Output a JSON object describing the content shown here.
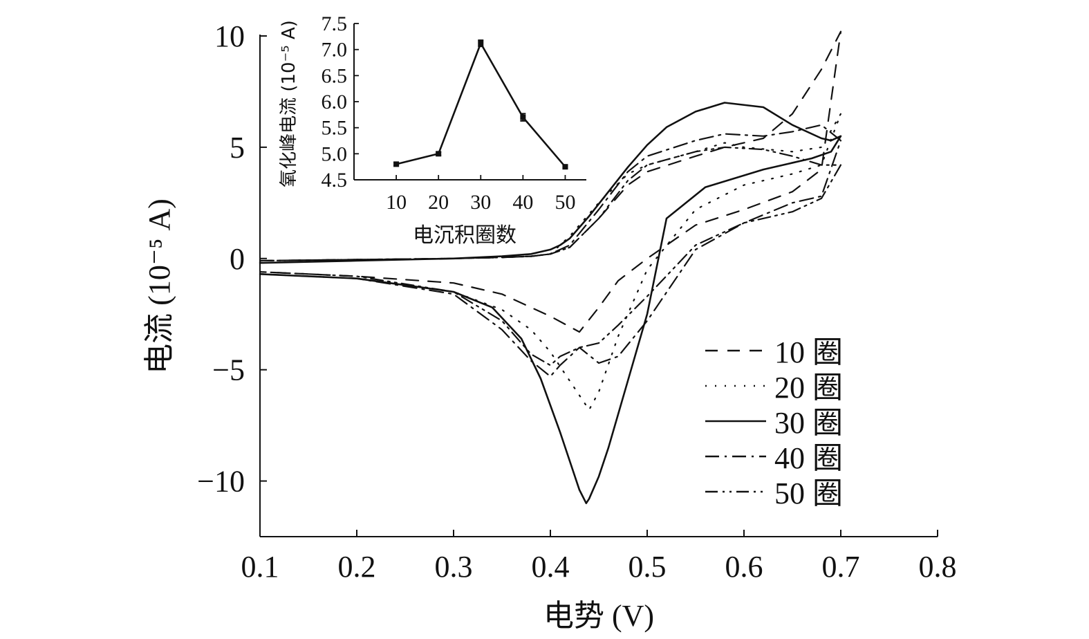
{
  "chart_data": [
    {
      "type": "line",
      "xlabel": "电势 (V)",
      "ylabel": "电流 (10⁻⁵ A)",
      "xlim": [
        0.1,
        0.8
      ],
      "ylim": [
        -12.5,
        10
      ],
      "xticks": [
        "0.1",
        "0.2",
        "0.3",
        "0.4",
        "0.5",
        "0.6",
        "0.7",
        "0.8"
      ],
      "xtick_values": [
        0.1,
        0.2,
        0.3,
        0.4,
        0.5,
        0.6,
        0.7,
        0.8
      ],
      "yticks": [
        "10",
        "5",
        "0",
        "−5",
        "−10"
      ],
      "ytick_values": [
        10,
        5,
        0,
        -5,
        -10
      ],
      "grid": false,
      "legend_position": "bottom-right",
      "series": [
        {
          "name": "10 圈",
          "style": "dashed",
          "x": [
            0.1,
            0.2,
            0.3,
            0.35,
            0.38,
            0.4,
            0.42,
            0.45,
            0.48,
            0.5,
            0.55,
            0.58,
            0.62,
            0.65,
            0.68,
            0.7,
            0.68,
            0.65,
            0.6,
            0.55,
            0.5,
            0.47,
            0.45,
            0.43,
            0.4,
            0.35,
            0.3,
            0.2,
            0.1
          ],
          "y": [
            -0.1,
            -0.05,
            0.0,
            0.05,
            0.1,
            0.2,
            0.5,
            1.8,
            3.3,
            3.9,
            4.6,
            5.0,
            5.4,
            6.5,
            8.5,
            10.2,
            4.0,
            3.0,
            2.2,
            1.5,
            0.0,
            -1.0,
            -2.2,
            -3.3,
            -2.6,
            -1.6,
            -1.1,
            -0.8,
            -0.6
          ]
        },
        {
          "name": "20 圈",
          "style": "dotted",
          "x": [
            0.1,
            0.2,
            0.3,
            0.35,
            0.38,
            0.4,
            0.42,
            0.45,
            0.48,
            0.5,
            0.55,
            0.58,
            0.6,
            0.65,
            0.68,
            0.7,
            0.68,
            0.65,
            0.6,
            0.55,
            0.5,
            0.47,
            0.45,
            0.44,
            0.42,
            0.4,
            0.38,
            0.35,
            0.3,
            0.2,
            0.1
          ],
          "y": [
            -0.1,
            -0.05,
            0.0,
            0.05,
            0.1,
            0.2,
            1.0,
            2.5,
            3.8,
            4.2,
            4.8,
            5.2,
            5.0,
            4.8,
            5.0,
            6.5,
            4.2,
            3.8,
            3.3,
            2.2,
            -0.5,
            -3.5,
            -6.0,
            -6.8,
            -5.5,
            -4.2,
            -3.2,
            -2.3,
            -1.5,
            -0.9,
            -0.7
          ]
        },
        {
          "name": "30 圈",
          "style": "solid",
          "x": [
            0.1,
            0.2,
            0.3,
            0.35,
            0.38,
            0.4,
            0.41,
            0.42,
            0.44,
            0.46,
            0.48,
            0.5,
            0.52,
            0.55,
            0.58,
            0.62,
            0.65,
            0.68,
            0.69,
            0.7,
            0.69,
            0.67,
            0.62,
            0.56,
            0.52,
            0.5,
            0.48,
            0.46,
            0.45,
            0.44,
            0.437,
            0.43,
            0.41,
            0.39,
            0.37,
            0.34,
            0.3,
            0.2,
            0.1
          ],
          "y": [
            -0.2,
            -0.1,
            0.0,
            0.1,
            0.2,
            0.4,
            0.6,
            0.9,
            1.9,
            3.0,
            4.1,
            5.1,
            5.9,
            6.6,
            7.0,
            6.8,
            6.0,
            5.4,
            5.3,
            5.5,
            4.8,
            4.5,
            4.0,
            3.2,
            1.8,
            -2.5,
            -5.5,
            -8.5,
            -9.8,
            -10.8,
            -11.0,
            -10.4,
            -7.8,
            -5.4,
            -3.6,
            -2.2,
            -1.5,
            -0.9,
            -0.7
          ]
        },
        {
          "name": "40 圈",
          "style": "dashdot",
          "x": [
            0.1,
            0.2,
            0.3,
            0.35,
            0.38,
            0.4,
            0.42,
            0.45,
            0.48,
            0.5,
            0.55,
            0.58,
            0.62,
            0.65,
            0.68,
            0.7,
            0.68,
            0.65,
            0.6,
            0.55,
            0.5,
            0.47,
            0.45,
            0.43,
            0.41,
            0.4,
            0.38,
            0.35,
            0.3,
            0.2,
            0.1
          ],
          "y": [
            -0.1,
            -0.05,
            0.0,
            0.05,
            0.1,
            0.2,
            0.6,
            2.2,
            3.9,
            4.6,
            5.3,
            5.6,
            5.5,
            5.7,
            6.0,
            5.3,
            2.8,
            2.5,
            1.6,
            0.4,
            -2.8,
            -4.4,
            -4.7,
            -4.0,
            -4.8,
            -5.3,
            -4.6,
            -3.2,
            -1.6,
            -0.9,
            -0.7
          ]
        },
        {
          "name": "50 圈",
          "style": "dashdotdot",
          "x": [
            0.1,
            0.2,
            0.3,
            0.35,
            0.38,
            0.4,
            0.42,
            0.45,
            0.48,
            0.5,
            0.55,
            0.58,
            0.62,
            0.65,
            0.68,
            0.7,
            0.68,
            0.65,
            0.6,
            0.55,
            0.5,
            0.47,
            0.45,
            0.43,
            0.41,
            0.4,
            0.38,
            0.35,
            0.3,
            0.2,
            0.1
          ],
          "y": [
            -0.1,
            -0.05,
            0.0,
            0.05,
            0.1,
            0.2,
            0.5,
            1.8,
            3.5,
            4.2,
            4.8,
            5.0,
            4.9,
            4.6,
            4.2,
            4.2,
            2.7,
            2.1,
            1.6,
            0.6,
            -1.7,
            -3.0,
            -3.8,
            -4.0,
            -4.4,
            -4.8,
            -4.3,
            -2.8,
            -1.5,
            -0.8,
            -0.6
          ]
        }
      ]
    },
    {
      "type": "line",
      "inset": true,
      "xlabel": "电沉积圈数",
      "ylabel": "氧化峰电流 (10⁻⁵ A)",
      "xlim": [
        0,
        55
      ],
      "ylim": [
        4.5,
        7.5
      ],
      "xticks": [
        "10",
        "20",
        "30",
        "40",
        "50"
      ],
      "xtick_values": [
        10,
        20,
        30,
        40,
        50
      ],
      "yticks": [
        "7.5",
        "7.0",
        "6.5",
        "6.0",
        "5.5",
        "5.0",
        "4.5"
      ],
      "ytick_values": [
        7.5,
        7.0,
        6.5,
        6.0,
        5.5,
        5.0,
        4.5
      ],
      "x": [
        10,
        20,
        30,
        40,
        50
      ],
      "y": [
        4.8,
        5.0,
        7.12,
        5.7,
        4.75
      ],
      "error": [
        0.03,
        0.03,
        0.06,
        0.07,
        0.02
      ]
    }
  ]
}
